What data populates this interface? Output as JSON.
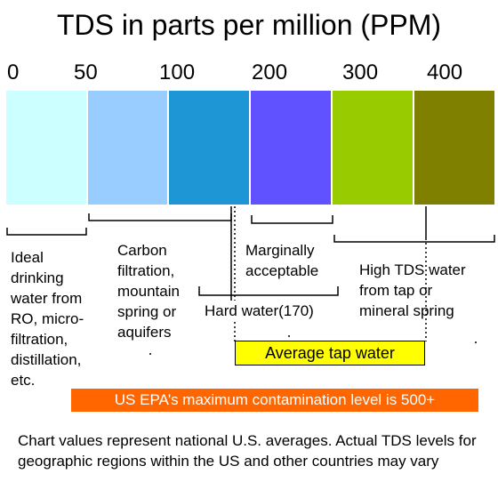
{
  "title": "TDS in parts per million (PPM)",
  "scale_ticks": [
    "0",
    "50",
    "100",
    "200",
    "300",
    "400"
  ],
  "bands": [
    {
      "color": "#ccffff"
    },
    {
      "color": "#99ccff"
    },
    {
      "color": "#1e96d6"
    },
    {
      "color": "#6152ff"
    },
    {
      "color": "#99cc00"
    },
    {
      "color": "#808000"
    }
  ],
  "labels": {
    "ideal": "Ideal\ndrinking\nwater from\nRO, micro-\nfiltration,\ndistillation,\netc.",
    "carbon": "Carbon\nfiltration,\nmountain\nspring or\naquifers",
    "marginal": "Marginally\nacceptable",
    "hard_water": "Hard water(170)",
    "high_tds": "High TDS water\nfrom tap or\nmineral spring",
    "average_tap": "Average tap water"
  },
  "epa_notice": "US EPA’s maximum contamination level is 500+",
  "footnote": "Chart values represent national U.S. averages. Actual TDS levels for geographic regions within the US and other countries may vary"
}
